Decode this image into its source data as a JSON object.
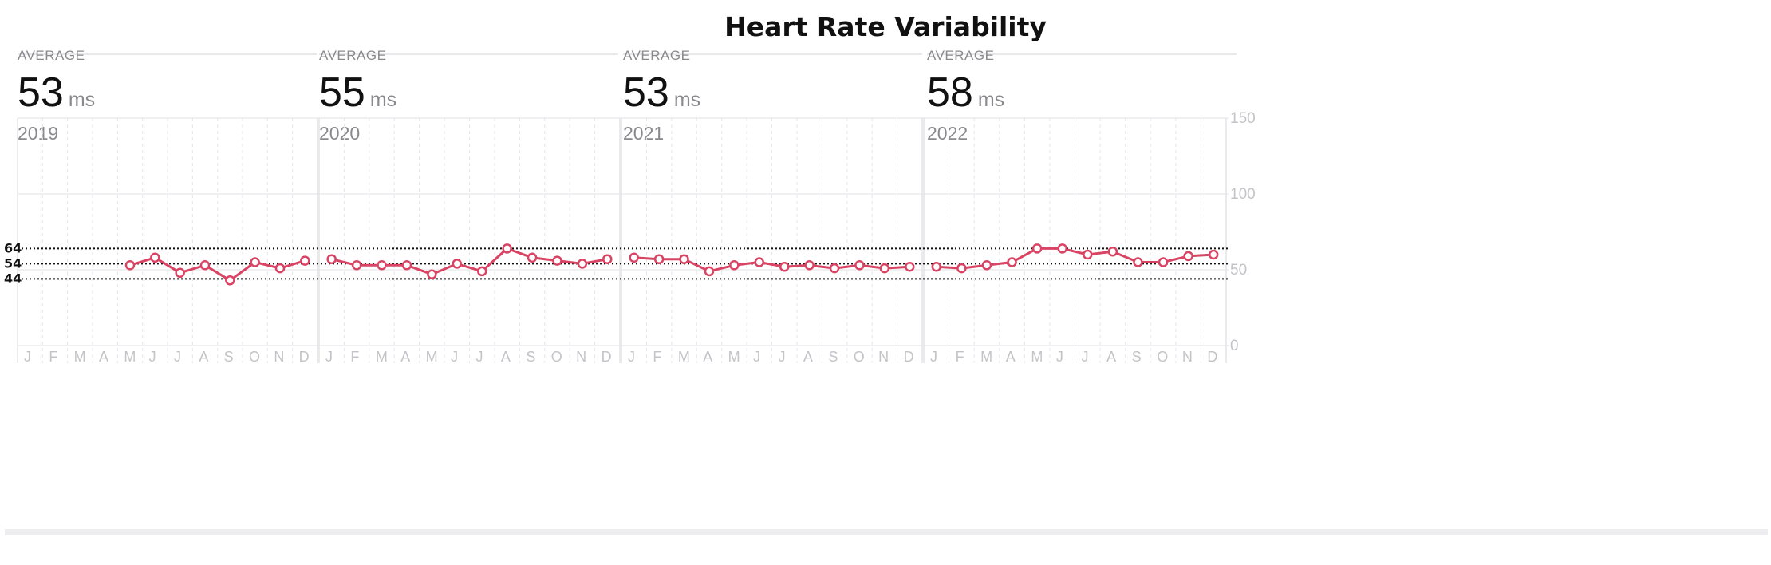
{
  "title": "Heart Rate Variability",
  "panels": [
    {
      "avg_label": "AVERAGE",
      "avg_value": "53",
      "unit": "ms",
      "year": "2019"
    },
    {
      "avg_label": "AVERAGE",
      "avg_value": "55",
      "unit": "ms",
      "year": "2020"
    },
    {
      "avg_label": "AVERAGE",
      "avg_value": "53",
      "unit": "ms",
      "year": "2021"
    },
    {
      "avg_label": "AVERAGE",
      "avg_value": "58",
      "unit": "ms",
      "year": "2022"
    }
  ],
  "chart_data": {
    "type": "line",
    "title": "Heart Rate Variability",
    "unit": "ms",
    "months": [
      "J",
      "F",
      "M",
      "A",
      "M",
      "J",
      "J",
      "A",
      "S",
      "O",
      "N",
      "D"
    ],
    "y_ticks": [
      0,
      50,
      100,
      150
    ],
    "ylim": [
      0,
      150
    ],
    "reference_lines": [
      64,
      54,
      44
    ],
    "reference_labels": [
      "64",
      "54",
      "44"
    ],
    "series_color": "#d94464",
    "series": [
      {
        "year": "2019",
        "values": [
          null,
          null,
          null,
          null,
          53,
          58,
          48,
          53,
          43,
          55,
          51,
          56
        ]
      },
      {
        "year": "2020",
        "values": [
          57,
          53,
          53,
          53,
          47,
          54,
          49,
          64,
          58,
          56,
          54,
          57
        ]
      },
      {
        "year": "2021",
        "values": [
          58,
          57,
          57,
          49,
          53,
          55,
          52,
          53,
          51,
          53,
          51,
          52
        ]
      },
      {
        "year": "2022",
        "values": [
          52,
          51,
          53,
          55,
          64,
          64,
          60,
          62,
          55,
          55,
          59,
          60
        ]
      }
    ]
  }
}
